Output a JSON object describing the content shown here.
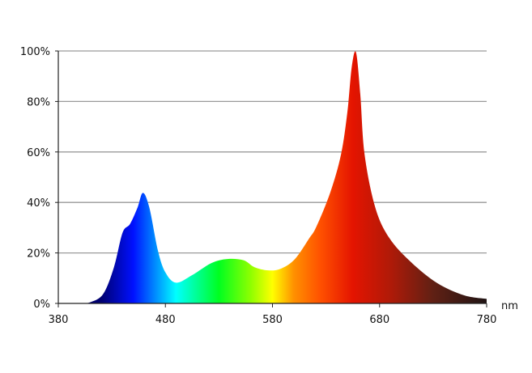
{
  "chart_data": {
    "type": "area",
    "title": "",
    "xlabel": "nm",
    "ylabel": "",
    "xlim": [
      380,
      780
    ],
    "ylim": [
      0,
      100
    ],
    "x_ticks": [
      "380",
      "480",
      "580",
      "680",
      "780"
    ],
    "y_ticks": [
      "0%",
      "20%",
      "40%",
      "60%",
      "80%",
      "100%"
    ],
    "grid": "horizontal",
    "fill": "visible-spectrum gradient by wavelength",
    "series": [
      {
        "x": [
          380,
          400,
          410,
          422,
          432,
          440,
          447,
          454,
          459,
          465,
          473,
          480,
          490,
          505,
          523,
          538,
          553,
          563,
          576,
          588,
          601,
          614,
          621,
          634,
          644,
          650,
          654,
          658,
          662,
          666,
          676,
          689,
          709,
          734,
          759,
          780
        ],
        "y": [
          0,
          0.1,
          0.5,
          3.8,
          14.4,
          28,
          31.5,
          38,
          43.8,
          38,
          21,
          12.3,
          8.2,
          11.2,
          16,
          17.6,
          17.1,
          14.4,
          13.1,
          13.8,
          17.6,
          25.6,
          30.4,
          44,
          59,
          76,
          93.6,
          99.4,
          82.8,
          59,
          38,
          26,
          16.5,
          8,
          3.2,
          1.8
        ]
      }
    ],
    "colors": {
      "420": "#000070",
      "450": "#0010ff",
      "470": "#0088ff",
      "490": "#00ffff",
      "530": "#00ff20",
      "560": "#90ff00",
      "580": "#ffff00",
      "600": "#ff9000",
      "625": "#ff5000",
      "655": "#e41400",
      "690": "#b01a08",
      "730": "#602014",
      "780": "#201414"
    }
  }
}
